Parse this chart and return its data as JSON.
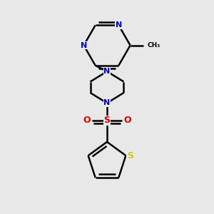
{
  "background_color": "#e8e8e8",
  "bond_color": "#000000",
  "nitrogen_color": "#0000cc",
  "sulfur_so2_color": "#dd0000",
  "sulfur_th_color": "#cccc00",
  "oxygen_color": "#dd0000",
  "line_width": 1.8,
  "figsize": [
    3.0,
    3.0
  ],
  "dpi": 100,
  "xlim": [
    0.15,
    0.85
  ],
  "ylim": [
    0.05,
    0.97
  ]
}
